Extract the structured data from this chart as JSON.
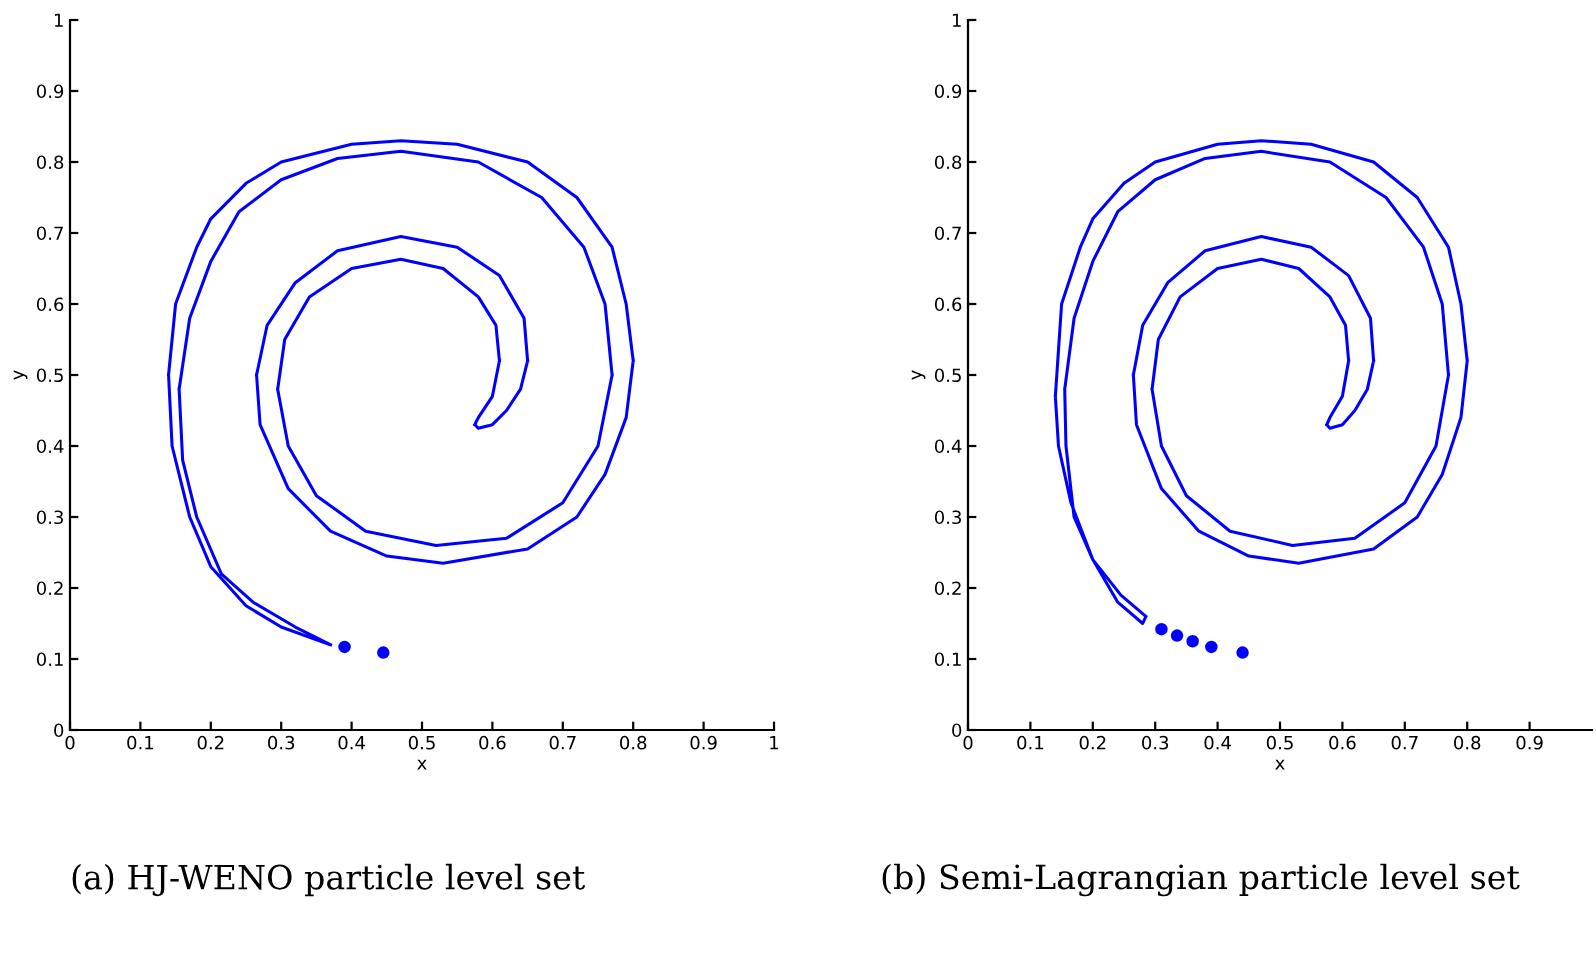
{
  "chart_data": [
    {
      "type": "line",
      "xlabel": "x",
      "ylabel": "y",
      "xlim": [
        0,
        1
      ],
      "ylim": [
        0,
        1
      ],
      "xticks": [
        0,
        0.1,
        0.2,
        0.3,
        0.4,
        0.5,
        0.6,
        0.7,
        0.8,
        0.9,
        1
      ],
      "yticks": [
        0,
        0.1,
        0.2,
        0.3,
        0.4,
        0.5,
        0.6,
        0.7,
        0.8,
        0.9,
        1
      ],
      "grid": false,
      "marker": "none",
      "line_style": "solid",
      "annotations": [
        "(a) HJ-WENO particle level set"
      ],
      "series": [
        {
          "color": "#0000ff",
          "x": [
            0.37,
            0.3,
            0.25,
            0.2,
            0.17,
            0.145,
            0.14,
            null,
            0.14,
            0.15,
            0.18,
            0.2,
            0.25,
            0.3,
            0.4,
            0.47,
            0.55,
            0.65,
            0.72,
            0.77,
            0.79,
            0.8,
            null,
            0.8,
            0.79,
            0.76,
            0.72,
            0.65,
            0.53,
            0.45,
            0.37,
            0.31,
            0.27,
            0.265,
            null,
            0.265,
            0.28,
            0.32,
            0.38,
            0.47,
            0.55,
            0.61,
            0.645,
            0.65,
            null,
            0.65,
            0.64,
            0.62,
            0.6,
            0.58,
            0.575,
            null,
            0.575,
            0.58,
            0.6,
            0.61,
            null,
            0.61,
            0.605,
            0.58,
            0.53,
            0.47,
            0.4,
            0.34,
            0.305,
            0.295,
            null,
            0.295,
            0.31,
            0.35,
            0.42,
            0.52,
            0.62,
            0.7,
            0.75,
            0.77,
            null,
            0.77,
            0.76,
            0.73,
            0.67,
            0.58,
            0.47,
            0.38,
            0.3,
            0.24,
            0.2,
            0.17,
            0.155,
            null,
            0.155,
            0.16,
            0.18,
            0.215,
            0.26,
            0.32,
            0.37
          ],
          "values": [
            0.12,
            0.145,
            0.175,
            0.23,
            0.3,
            0.4,
            0.5,
            null,
            0.5,
            0.6,
            0.68,
            0.72,
            0.77,
            0.8,
            0.825,
            0.83,
            0.825,
            0.8,
            0.75,
            0.68,
            0.6,
            0.52,
            null,
            0.52,
            0.44,
            0.36,
            0.3,
            0.255,
            0.235,
            0.245,
            0.28,
            0.34,
            0.43,
            0.5,
            null,
            0.5,
            0.57,
            0.63,
            0.675,
            0.695,
            0.68,
            0.64,
            0.58,
            0.52,
            null,
            0.52,
            0.48,
            0.45,
            0.43,
            0.425,
            0.43,
            null,
            0.43,
            0.44,
            0.47,
            0.52,
            null,
            0.52,
            0.57,
            0.61,
            0.65,
            0.663,
            0.65,
            0.61,
            0.55,
            0.48,
            null,
            0.48,
            0.4,
            0.33,
            0.28,
            0.26,
            0.27,
            0.32,
            0.4,
            0.5,
            null,
            0.5,
            0.6,
            0.68,
            0.75,
            0.8,
            0.815,
            0.805,
            0.775,
            0.73,
            0.66,
            0.58,
            0.48,
            null,
            0.48,
            0.38,
            0.3,
            0.22,
            0.18,
            0.145,
            0.12
          ]
        },
        {
          "type": "scatter",
          "marker": "circle",
          "color": "#0000ff",
          "x": [
            0.39,
            0.445
          ],
          "values": [
            0.117,
            0.109
          ]
        }
      ]
    },
    {
      "type": "line",
      "xlabel": "x",
      "ylabel": "y",
      "xlim": [
        0,
        1
      ],
      "ylim": [
        0,
        1
      ],
      "xticks": [
        0,
        0.1,
        0.2,
        0.3,
        0.4,
        0.5,
        0.6,
        0.7,
        0.8,
        0.9
      ],
      "yticks": [
        0,
        0.1,
        0.2,
        0.3,
        0.4,
        0.5,
        0.6,
        0.7,
        0.8,
        0.9,
        1
      ],
      "grid": false,
      "marker": "none",
      "line_style": "solid",
      "annotations": [
        "(b) Semi-Lagrangian particle level set"
      ],
      "series": [
        {
          "color": "#0000ff",
          "x": [
            0.285,
            0.28,
            0.24,
            0.2,
            0.165,
            0.145,
            0.14,
            null,
            0.14,
            0.15,
            0.18,
            0.2,
            0.25,
            0.3,
            0.4,
            0.47,
            0.55,
            0.65,
            0.72,
            0.77,
            0.79,
            0.8,
            null,
            0.8,
            0.79,
            0.76,
            0.72,
            0.65,
            0.53,
            0.45,
            0.37,
            0.31,
            0.27,
            0.265,
            null,
            0.265,
            0.28,
            0.32,
            0.38,
            0.47,
            0.55,
            0.61,
            0.645,
            0.65,
            null,
            0.65,
            0.64,
            0.62,
            0.6,
            0.58,
            0.575,
            null,
            0.575,
            0.58,
            0.6,
            0.61,
            null,
            0.61,
            0.605,
            0.58,
            0.53,
            0.47,
            0.4,
            0.34,
            0.305,
            0.295,
            null,
            0.295,
            0.31,
            0.35,
            0.42,
            0.52,
            0.62,
            0.7,
            0.75,
            0.77,
            null,
            0.77,
            0.76,
            0.73,
            0.67,
            0.58,
            0.47,
            0.38,
            0.3,
            0.24,
            0.2,
            0.17,
            0.155,
            null,
            0.155,
            0.157,
            0.17,
            0.2,
            0.245,
            0.285
          ],
          "values": [
            0.16,
            0.15,
            0.18,
            0.24,
            0.32,
            0.4,
            0.47,
            null,
            0.47,
            0.6,
            0.68,
            0.72,
            0.77,
            0.8,
            0.825,
            0.83,
            0.825,
            0.8,
            0.75,
            0.68,
            0.6,
            0.52,
            null,
            0.52,
            0.44,
            0.36,
            0.3,
            0.255,
            0.235,
            0.245,
            0.28,
            0.34,
            0.43,
            0.5,
            null,
            0.5,
            0.57,
            0.63,
            0.675,
            0.695,
            0.68,
            0.64,
            0.58,
            0.52,
            null,
            0.52,
            0.48,
            0.45,
            0.43,
            0.425,
            0.43,
            null,
            0.43,
            0.44,
            0.47,
            0.52,
            null,
            0.52,
            0.57,
            0.61,
            0.65,
            0.663,
            0.65,
            0.61,
            0.55,
            0.48,
            null,
            0.48,
            0.4,
            0.33,
            0.28,
            0.26,
            0.27,
            0.32,
            0.4,
            0.5,
            null,
            0.5,
            0.6,
            0.68,
            0.75,
            0.8,
            0.815,
            0.805,
            0.775,
            0.73,
            0.66,
            0.58,
            0.48,
            null,
            0.48,
            0.4,
            0.3,
            0.24,
            0.19,
            0.16
          ]
        },
        {
          "type": "scatter",
          "marker": "circle",
          "color": "#0000ff",
          "x": [
            0.31,
            0.335,
            0.36,
            0.39,
            0.44
          ],
          "values": [
            0.142,
            0.133,
            0.125,
            0.117,
            0.109
          ]
        }
      ]
    }
  ]
}
